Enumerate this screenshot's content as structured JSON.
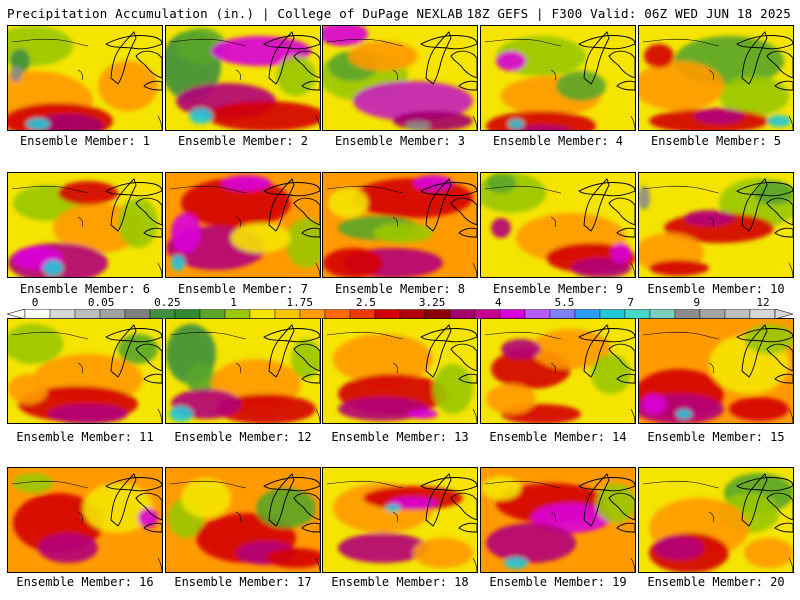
{
  "header": {
    "left": "Precipitation Accumulation (in.) | College of DuPage NEXLAB",
    "right": "18Z GEFS | F300 Valid: 06Z WED JUN 18 2025"
  },
  "panel_label_prefix": "Ensemble Member: ",
  "members": [
    {
      "id": "1",
      "label": "Ensemble Member: 1",
      "base": "#f4e400",
      "blobs": [
        [
          "#ff9a00",
          25,
          75,
          60,
          30
        ],
        [
          "#d40000",
          50,
          95,
          55,
          18
        ],
        [
          "#a3006b",
          60,
          100,
          35,
          12
        ],
        [
          "#23c6d6",
          30,
          98,
          12,
          6
        ],
        [
          "#9ac700",
          25,
          20,
          40,
          20
        ],
        [
          "#3f8f3f",
          12,
          35,
          10,
          12
        ],
        [
          "#8c8c8c",
          8,
          48,
          6,
          8
        ],
        [
          "#ff9a00",
          120,
          60,
          30,
          25
        ]
      ]
    },
    {
      "id": "2",
      "label": "Ensemble Member: 2",
      "base": "#f4e400",
      "blobs": [
        [
          "#3f8f3f",
          25,
          40,
          30,
          35
        ],
        [
          "#5aa52a",
          35,
          20,
          25,
          18
        ],
        [
          "#d900d9",
          95,
          25,
          50,
          15
        ],
        [
          "#b3007a",
          60,
          75,
          50,
          18
        ],
        [
          "#d40000",
          100,
          90,
          60,
          15
        ],
        [
          "#23c6d6",
          35,
          90,
          12,
          8
        ],
        [
          "#9ac700",
          130,
          50,
          20,
          20
        ]
      ]
    },
    {
      "id": "3",
      "label": "Ensemble Member: 3",
      "base": "#f4e400",
      "blobs": [
        [
          "#9ac700",
          40,
          50,
          45,
          25
        ],
        [
          "#5aa52a",
          30,
          40,
          25,
          15
        ],
        [
          "#d900d9",
          20,
          8,
          25,
          12
        ],
        [
          "#c51fbf",
          90,
          75,
          60,
          20
        ],
        [
          "#a3006b",
          110,
          95,
          40,
          10
        ],
        [
          "#8c8c8c",
          95,
          100,
          12,
          5
        ],
        [
          "#ff9a00",
          60,
          30,
          35,
          15
        ]
      ]
    },
    {
      "id": "4",
      "label": "Ensemble Member: 4",
      "base": "#f4e400",
      "blobs": [
        [
          "#9ac700",
          60,
          30,
          45,
          20
        ],
        [
          "#d900d9",
          30,
          35,
          15,
          10
        ],
        [
          "#ff9a00",
          70,
          70,
          50,
          20
        ],
        [
          "#d40000",
          60,
          100,
          55,
          15
        ],
        [
          "#b3007a",
          60,
          105,
          30,
          6
        ],
        [
          "#23c6d6",
          35,
          98,
          8,
          5
        ],
        [
          "#5aa52a",
          100,
          60,
          25,
          15
        ]
      ]
    },
    {
      "id": "5",
      "label": "Ensemble Member: 5",
      "base": "#f4e400",
      "blobs": [
        [
          "#5aa52a",
          90,
          35,
          55,
          25
        ],
        [
          "#9ac700",
          115,
          70,
          35,
          20
        ],
        [
          "#ff9a00",
          40,
          60,
          45,
          25
        ],
        [
          "#d40000",
          70,
          95,
          60,
          12
        ],
        [
          "#b3007a",
          80,
          90,
          25,
          8
        ],
        [
          "#23c6d6",
          140,
          95,
          12,
          6
        ],
        [
          "#d40000",
          20,
          30,
          15,
          12
        ]
      ]
    },
    {
      "id": "6",
      "label": "Ensemble Member: 6",
      "base": "#f4e400",
      "blobs": [
        [
          "#9ac700",
          40,
          30,
          35,
          18
        ],
        [
          "#ff9a00",
          90,
          55,
          45,
          25
        ],
        [
          "#b3007a",
          50,
          90,
          50,
          20
        ],
        [
          "#d900d9",
          30,
          85,
          25,
          12
        ],
        [
          "#23c6d6",
          45,
          95,
          10,
          8
        ],
        [
          "#d40000",
          80,
          20,
          30,
          12
        ],
        [
          "#9ac700",
          130,
          50,
          20,
          25
        ]
      ]
    },
    {
      "id": "7",
      "label": "Ensemble Member: 7",
      "base": "#ff9a00",
      "blobs": [
        [
          "#d40000",
          70,
          30,
          55,
          25
        ],
        [
          "#b3007a",
          50,
          75,
          50,
          22
        ],
        [
          "#d900d9",
          20,
          60,
          15,
          20
        ],
        [
          "#23c6d6",
          12,
          90,
          7,
          8
        ],
        [
          "#9ac700",
          140,
          70,
          20,
          25
        ],
        [
          "#f4e400",
          95,
          65,
          30,
          15
        ],
        [
          "#d900d9",
          80,
          10,
          25,
          8
        ]
      ]
    },
    {
      "id": "8",
      "label": "Ensemble Member: 8",
      "base": "#ff9a00",
      "blobs": [
        [
          "#5aa52a",
          55,
          55,
          40,
          12
        ],
        [
          "#9ac700",
          80,
          60,
          30,
          10
        ],
        [
          "#d40000",
          90,
          25,
          60,
          20
        ],
        [
          "#b3007a",
          70,
          90,
          50,
          15
        ],
        [
          "#d900d9",
          110,
          10,
          20,
          8
        ],
        [
          "#f4e400",
          25,
          30,
          20,
          15
        ],
        [
          "#d40000",
          30,
          90,
          30,
          15
        ]
      ]
    },
    {
      "id": "9",
      "label": "Ensemble Member: 9",
      "base": "#f4e400",
      "blobs": [
        [
          "#9ac700",
          30,
          20,
          35,
          20
        ],
        [
          "#5aa52a",
          20,
          10,
          15,
          10
        ],
        [
          "#ff9a00",
          90,
          65,
          55,
          25
        ],
        [
          "#d40000",
          110,
          85,
          45,
          15
        ],
        [
          "#b3007a",
          120,
          95,
          30,
          10
        ],
        [
          "#d900d9",
          140,
          80,
          10,
          10
        ],
        [
          "#b3007a",
          20,
          55,
          10,
          10
        ]
      ]
    },
    {
      "id": "10",
      "label": "Ensemble Member: 10",
      "base": "#f4e400",
      "blobs": [
        [
          "#9ac700",
          120,
          30,
          40,
          25
        ],
        [
          "#5aa52a",
          135,
          20,
          20,
          12
        ],
        [
          "#d40000",
          80,
          55,
          55,
          15
        ],
        [
          "#b3007a",
          70,
          45,
          25,
          8
        ],
        [
          "#ff9a00",
          30,
          80,
          35,
          20
        ],
        [
          "#8c8c8c",
          5,
          25,
          6,
          12
        ],
        [
          "#d40000",
          40,
          95,
          30,
          8
        ]
      ]
    },
    {
      "id": "11",
      "label": "Ensemble Member: 11",
      "base": "#f4e400",
      "blobs": [
        [
          "#9ac700",
          25,
          25,
          30,
          20
        ],
        [
          "#5aa52a",
          130,
          30,
          20,
          15
        ],
        [
          "#ff9a00",
          80,
          60,
          55,
          25
        ],
        [
          "#d40000",
          70,
          85,
          60,
          18
        ],
        [
          "#b3007a",
          80,
          95,
          40,
          10
        ],
        [
          "#ff9a00",
          20,
          70,
          20,
          15
        ]
      ]
    },
    {
      "id": "12",
      "label": "Ensemble Member: 12",
      "base": "#f4e400",
      "blobs": [
        [
          "#3f8f3f",
          25,
          35,
          25,
          30
        ],
        [
          "#5aa52a",
          35,
          60,
          15,
          15
        ],
        [
          "#ff9a00",
          90,
          65,
          45,
          25
        ],
        [
          "#d40000",
          100,
          90,
          50,
          15
        ],
        [
          "#b3007a",
          40,
          85,
          35,
          15
        ],
        [
          "#23c6d6",
          15,
          95,
          12,
          8
        ],
        [
          "#9ac700",
          140,
          40,
          15,
          20
        ]
      ]
    },
    {
      "id": "13",
      "label": "Ensemble Member: 13",
      "base": "#f4e400",
      "blobs": [
        [
          "#ff9a00",
          60,
          40,
          50,
          25
        ],
        [
          "#d40000",
          70,
          75,
          55,
          20
        ],
        [
          "#b3007a",
          60,
          90,
          45,
          12
        ],
        [
          "#9ac700",
          130,
          70,
          20,
          25
        ],
        [
          "#d900d9",
          100,
          95,
          15,
          5
        ]
      ]
    },
    {
      "id": "14",
      "label": "Ensemble Member: 14",
      "base": "#f4e400",
      "blobs": [
        [
          "#d40000",
          50,
          50,
          40,
          20
        ],
        [
          "#ff9a00",
          90,
          30,
          40,
          20
        ],
        [
          "#b3007a",
          40,
          30,
          20,
          10
        ],
        [
          "#9ac700",
          130,
          55,
          20,
          20
        ],
        [
          "#d40000",
          60,
          95,
          40,
          10
        ],
        [
          "#ff9a00",
          30,
          80,
          25,
          15
        ]
      ]
    },
    {
      "id": "15",
      "label": "Ensemble Member: 15",
      "base": "#ff9a00",
      "blobs": [
        [
          "#d40000",
          40,
          75,
          45,
          25
        ],
        [
          "#b3007a",
          40,
          90,
          45,
          15
        ],
        [
          "#23c6d6",
          45,
          95,
          8,
          5
        ],
        [
          "#d900d9",
          15,
          85,
          12,
          10
        ],
        [
          "#f4e400",
          110,
          45,
          40,
          30
        ],
        [
          "#9ac700",
          130,
          20,
          25,
          15
        ],
        [
          "#d40000",
          120,
          90,
          30,
          12
        ]
      ]
    },
    {
      "id": "16",
      "label": "Ensemble Member: 16",
      "base": "#ff9a00",
      "blobs": [
        [
          "#d40000",
          50,
          55,
          45,
          30
        ],
        [
          "#b3007a",
          60,
          80,
          30,
          15
        ],
        [
          "#9ac700",
          25,
          15,
          20,
          10
        ],
        [
          "#f4e400",
          110,
          40,
          35,
          25
        ],
        [
          "#d900d9",
          140,
          50,
          10,
          10
        ]
      ]
    },
    {
      "id": "17",
      "label": "Ensemble Member: 17",
      "base": "#ff9a00",
      "blobs": [
        [
          "#9ac700",
          20,
          50,
          18,
          20
        ],
        [
          "#f4e400",
          40,
          30,
          25,
          20
        ],
        [
          "#d40000",
          80,
          70,
          50,
          25
        ],
        [
          "#b3007a",
          100,
          85,
          30,
          12
        ],
        [
          "#5aa52a",
          120,
          40,
          30,
          20
        ],
        [
          "#d40000",
          130,
          90,
          30,
          10
        ]
      ]
    },
    {
      "id": "18",
      "label": "Ensemble Member: 18",
      "base": "#f4e400",
      "blobs": [
        [
          "#ff9a00",
          60,
          40,
          50,
          25
        ],
        [
          "#d40000",
          90,
          30,
          50,
          12
        ],
        [
          "#d900d9",
          90,
          35,
          25,
          6
        ],
        [
          "#23c6d6",
          70,
          40,
          8,
          4
        ],
        [
          "#b3007a",
          60,
          80,
          45,
          15
        ],
        [
          "#ff9a00",
          120,
          85,
          30,
          15
        ]
      ]
    },
    {
      "id": "19",
      "label": "Ensemble Member: 19",
      "base": "#ff9a00",
      "blobs": [
        [
          "#d40000",
          70,
          35,
          55,
          20
        ],
        [
          "#d900d9",
          90,
          50,
          40,
          15
        ],
        [
          "#b3007a",
          50,
          75,
          45,
          20
        ],
        [
          "#23c6d6",
          35,
          95,
          12,
          6
        ],
        [
          "#9ac700",
          135,
          35,
          20,
          20
        ],
        [
          "#f4e400",
          20,
          20,
          20,
          12
        ]
      ]
    },
    {
      "id": "20",
      "label": "Ensemble Member: 20",
      "base": "#f4e400",
      "blobs": [
        [
          "#5aa52a",
          120,
          25,
          35,
          20
        ],
        [
          "#9ac700",
          110,
          45,
          30,
          20
        ],
        [
          "#ff9a00",
          60,
          60,
          50,
          30
        ],
        [
          "#d40000",
          50,
          85,
          40,
          20
        ],
        [
          "#b3007a",
          40,
          80,
          25,
          12
        ],
        [
          "#ff9a00",
          130,
          85,
          25,
          15
        ]
      ]
    }
  ],
  "colorbar": {
    "labels": [
      "0",
      "0.05",
      "0.25",
      "1",
      "1.75",
      "2.5",
      "3.25",
      "4",
      "5.5",
      "7",
      "9",
      "12"
    ],
    "colors": [
      "#ffffff",
      "#d8d8d8",
      "#bdbdbd",
      "#a1a1a1",
      "#7f7f7f",
      "#3f8f3f",
      "#2f8a2f",
      "#5aa52a",
      "#9ac700",
      "#f4e400",
      "#f7c400",
      "#ff9a00",
      "#ff6a00",
      "#ee3a00",
      "#d40000",
      "#b00000",
      "#8b0000",
      "#a3006b",
      "#c5008f",
      "#d900d9",
      "#b55bff",
      "#7f7fff",
      "#2a9dff",
      "#23c6d6",
      "#45d8c8",
      "#7fcfc0",
      "#8c8c8c",
      "#a5a5a5",
      "#bebebe",
      "#d7d7d7"
    ]
  }
}
